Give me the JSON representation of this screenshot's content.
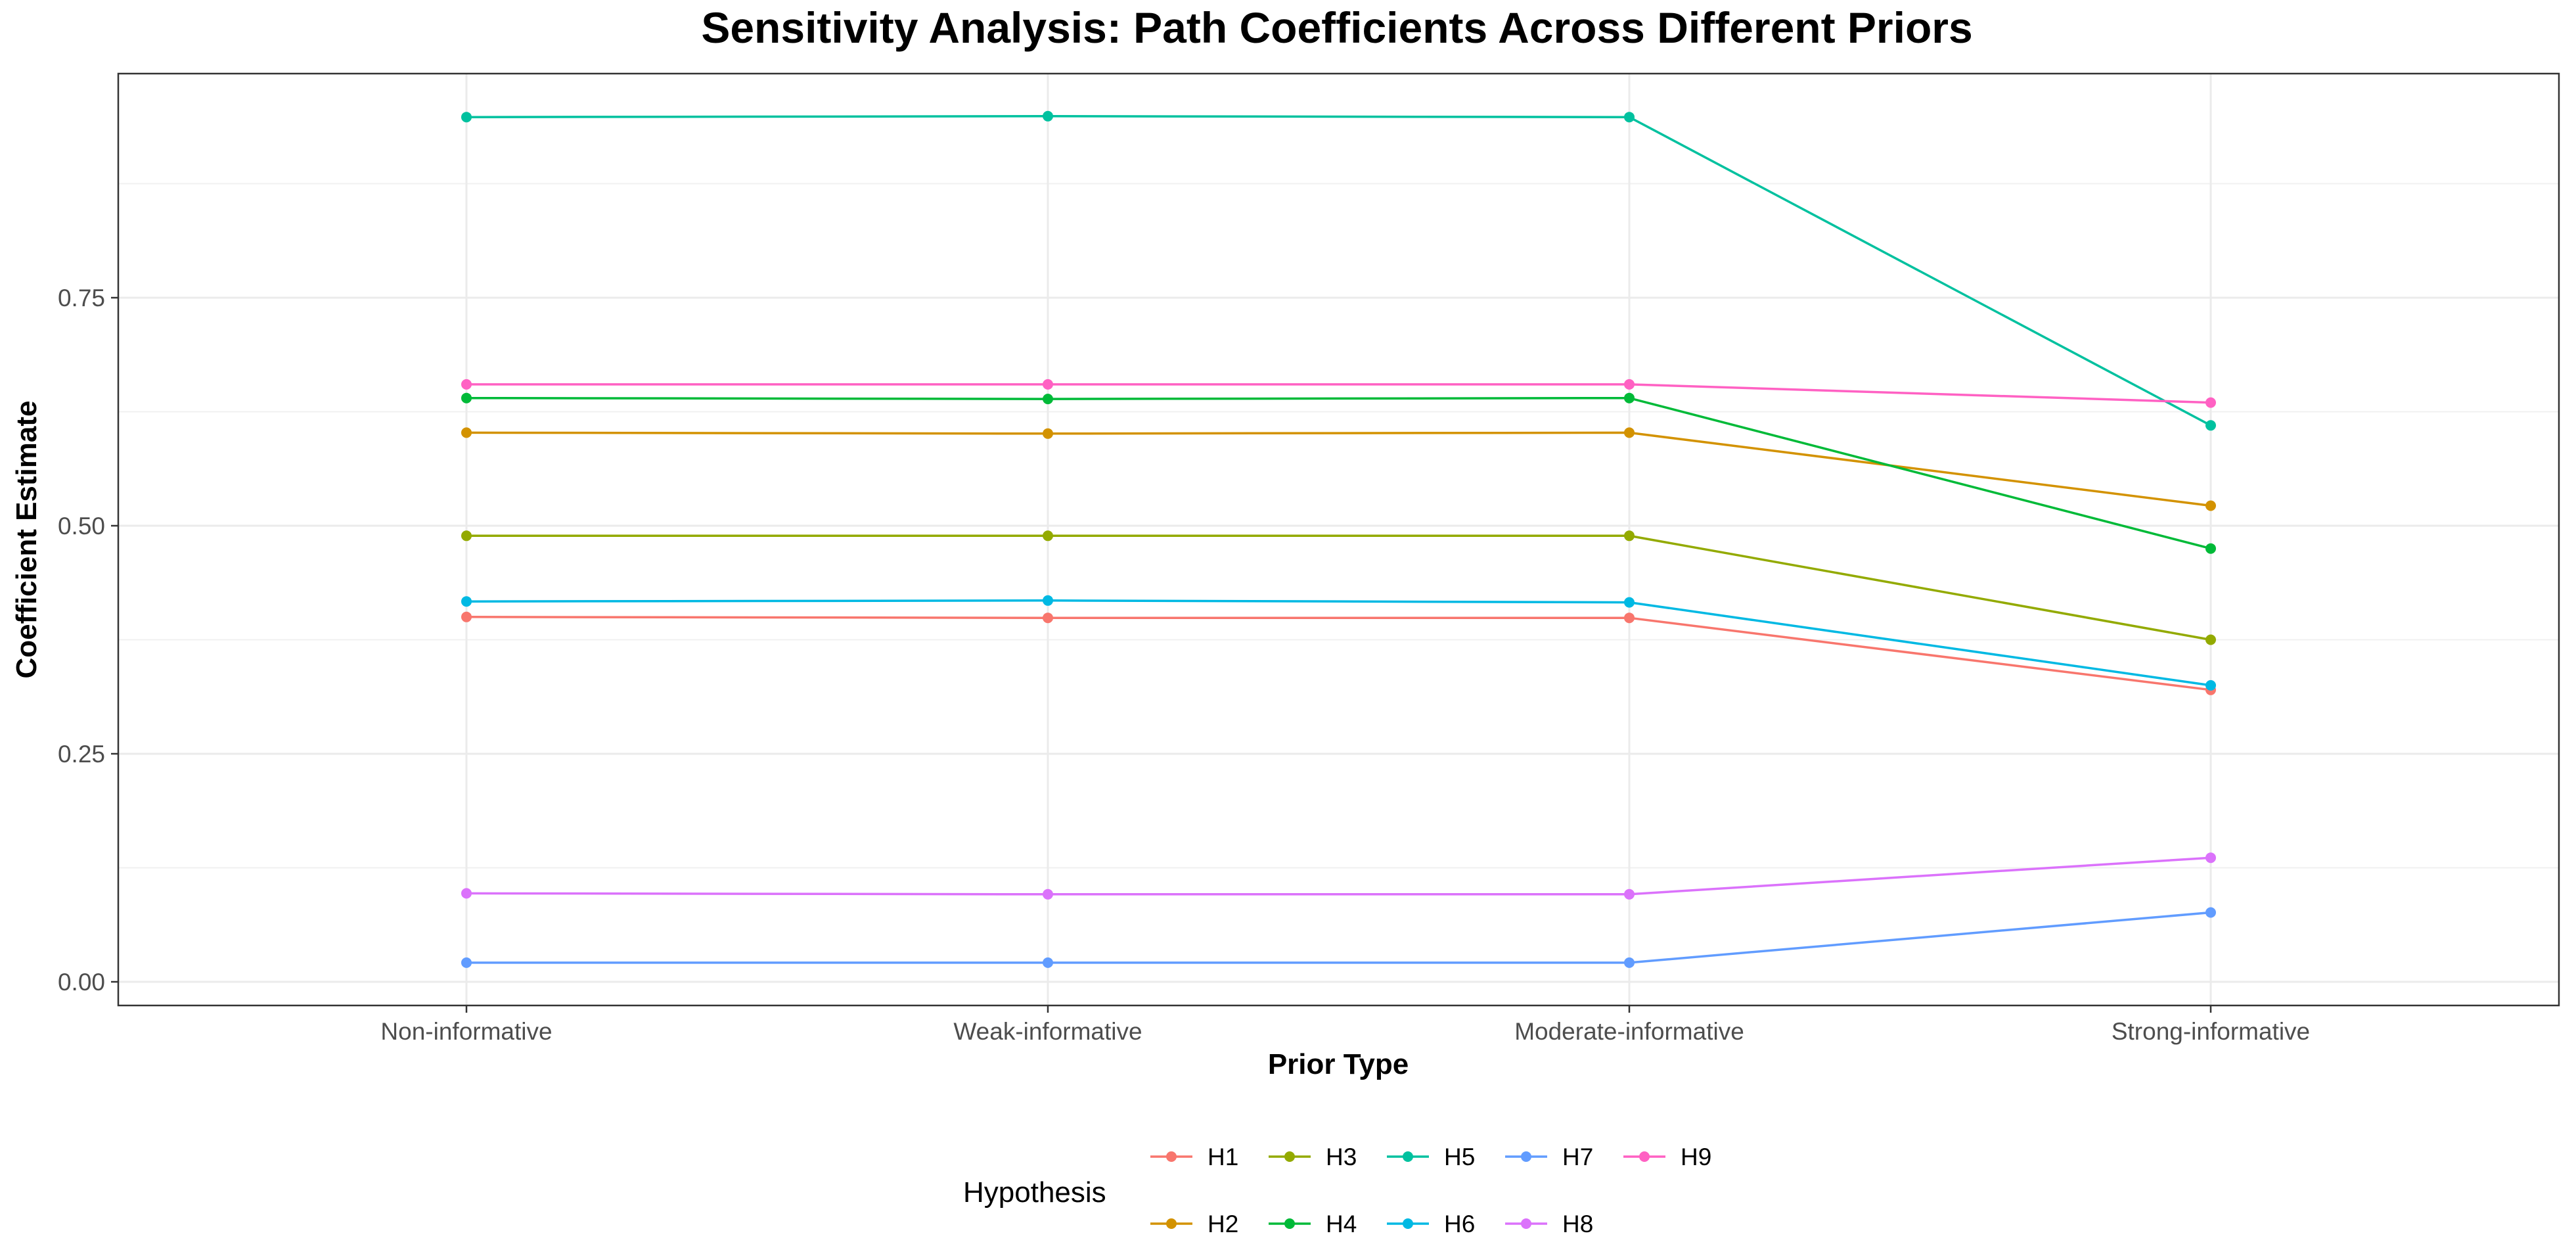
{
  "chart_data": {
    "type": "line",
    "title": "Sensitivity Analysis: Path Coefficients Across Different Priors",
    "xlabel": "Prior Type",
    "ylabel": "Coefficient Estimate",
    "categories": [
      "Non-informative",
      "Weak-informative",
      "Moderate-informative",
      "Strong-informative"
    ],
    "ylim": [
      -0.025,
      0.99
    ],
    "yticks": [
      0.0,
      0.25,
      0.5,
      0.75
    ],
    "ytick_labels": [
      "0.00",
      "0.25",
      "0.50",
      "0.75"
    ],
    "grid": true,
    "legend_title": "Hypothesis",
    "legend_position": "bottom",
    "series": [
      {
        "name": "H1",
        "color": "#F8766D",
        "values": [
          0.4,
          0.399,
          0.399,
          0.32
        ]
      },
      {
        "name": "H2",
        "color": "#D39200",
        "values": [
          0.602,
          0.601,
          0.602,
          0.522
        ]
      },
      {
        "name": "H3",
        "color": "#93AA00",
        "values": [
          0.489,
          0.489,
          0.489,
          0.375
        ]
      },
      {
        "name": "H4",
        "color": "#00BA38",
        "values": [
          0.64,
          0.639,
          0.64,
          0.475
        ]
      },
      {
        "name": "H5",
        "color": "#00C19F",
        "values": [
          0.948,
          0.949,
          0.948,
          0.61
        ]
      },
      {
        "name": "H6",
        "color": "#00B9E3",
        "values": [
          0.417,
          0.418,
          0.416,
          0.325
        ]
      },
      {
        "name": "H7",
        "color": "#619CFF",
        "values": [
          0.021,
          0.021,
          0.021,
          0.076
        ]
      },
      {
        "name": "H8",
        "color": "#DB72FB",
        "values": [
          0.097,
          0.096,
          0.096,
          0.136
        ]
      },
      {
        "name": "H9",
        "color": "#FF61C3",
        "values": [
          0.655,
          0.655,
          0.655,
          0.635
        ]
      }
    ]
  }
}
